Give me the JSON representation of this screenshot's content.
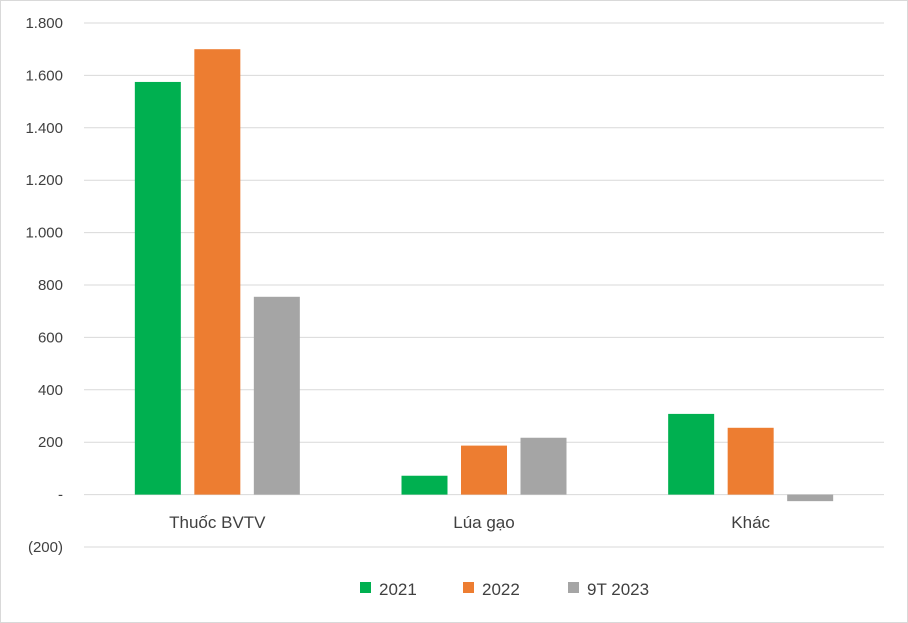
{
  "chart_data": {
    "type": "bar",
    "categories": [
      "Thuốc BVTV",
      "Lúa gạo",
      "Khác"
    ],
    "series": [
      {
        "name": "2021",
        "color": "#00b050",
        "values": [
          1575,
          72,
          308
        ]
      },
      {
        "name": "2022",
        "color": "#ed7d31",
        "values": [
          1700,
          187,
          255
        ]
      },
      {
        "name": "9T 2023",
        "color": "#a5a5a5",
        "values": [
          755,
          217,
          -25
        ]
      }
    ],
    "yticks": [
      -200,
      0,
      200,
      400,
      600,
      800,
      1000,
      1200,
      1400,
      1600,
      1800
    ],
    "ytick_labels": [
      "(200)",
      "-",
      "200",
      "400",
      "600",
      "800",
      "1.000",
      "1.200",
      "1.400",
      "1.600",
      "1.800"
    ],
    "ylim": [
      -200,
      1800
    ],
    "grid": true,
    "legend_position": "bottom"
  }
}
